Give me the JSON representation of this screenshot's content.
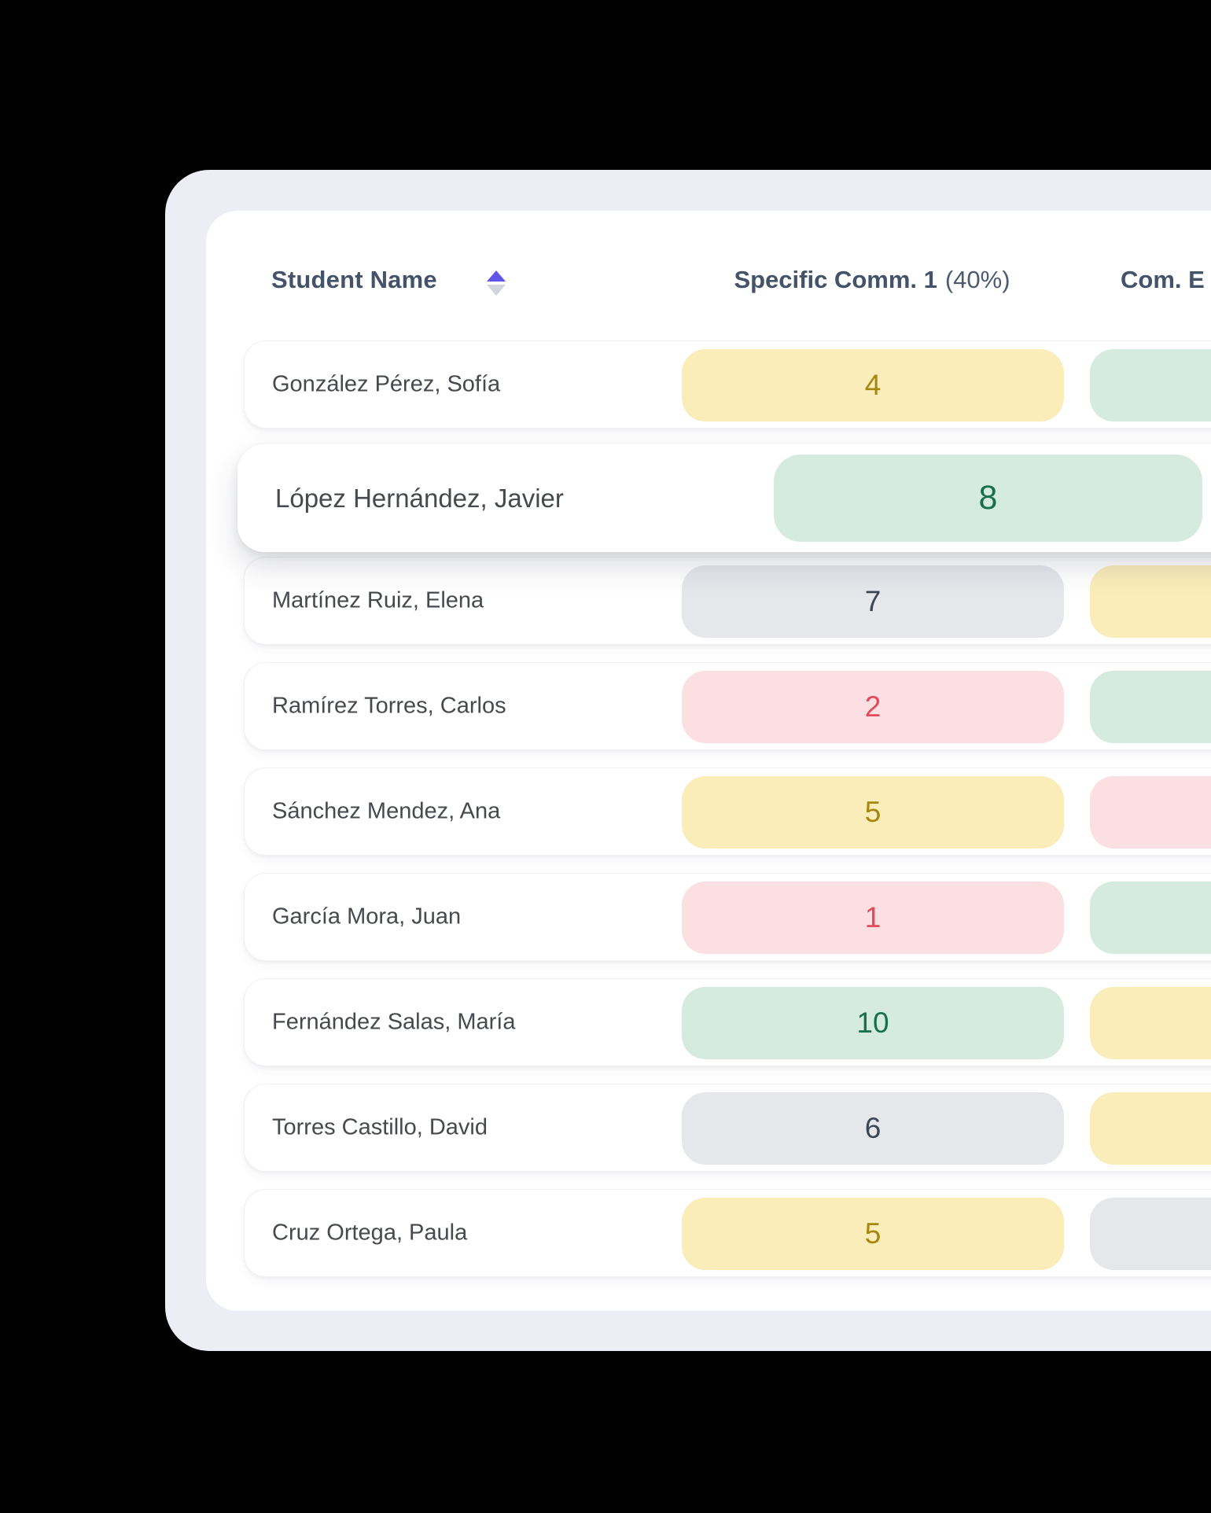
{
  "table": {
    "columns": {
      "student": {
        "label": "Student Name"
      },
      "col1": {
        "label": "Specific Comm. 1",
        "weight_label": "(40%)"
      },
      "col2": {
        "label": "Com. E"
      }
    },
    "sort_icon": {
      "direction": "ascending",
      "active_color": "#5E54E8",
      "inactive_color": "#D2D5DB"
    },
    "pill_colors": {
      "yellow": {
        "bg": "#FAEDBA",
        "text": "#A6870F"
      },
      "green": {
        "bg": "#D6EBDF",
        "text": "#17704A"
      },
      "gray": {
        "bg": "#E5E7EB",
        "text": "#3C4654"
      },
      "pink": {
        "bg": "#FBDFE2",
        "text": "#E24B5B"
      }
    },
    "rows": [
      {
        "name": "González Pérez, Sofía",
        "col1": {
          "value": "4",
          "color": "yellow"
        },
        "col2": {
          "color": "green"
        },
        "elevated": false
      },
      {
        "name": "López Hernández, Javier",
        "col1": {
          "value": "8",
          "color": "green"
        },
        "col2": null,
        "elevated": true
      },
      {
        "name": "Martínez Ruiz, Elena",
        "col1": {
          "value": "7",
          "color": "gray"
        },
        "col2": {
          "color": "yellow"
        },
        "elevated": false
      },
      {
        "name": "Ramírez Torres, Carlos",
        "col1": {
          "value": "2",
          "color": "pink"
        },
        "col2": {
          "color": "green"
        },
        "elevated": false
      },
      {
        "name": "Sánchez Mendez, Ana",
        "col1": {
          "value": "5",
          "color": "yellow"
        },
        "col2": {
          "color": "pink"
        },
        "elevated": false
      },
      {
        "name": "García Mora, Juan",
        "col1": {
          "value": "1",
          "color": "pink"
        },
        "col2": {
          "color": "green"
        },
        "elevated": false
      },
      {
        "name": "Fernández Salas, María",
        "col1": {
          "value": "10",
          "color": "green"
        },
        "col2": {
          "color": "yellow"
        },
        "elevated": false
      },
      {
        "name": "Torres Castillo, David",
        "col1": {
          "value": "6",
          "color": "gray"
        },
        "col2": {
          "color": "yellow"
        },
        "elevated": false
      },
      {
        "name": "Cruz Ortega, Paula",
        "col1": {
          "value": "5",
          "color": "yellow"
        },
        "col2": {
          "color": "gray"
        },
        "elevated": false
      }
    ]
  }
}
